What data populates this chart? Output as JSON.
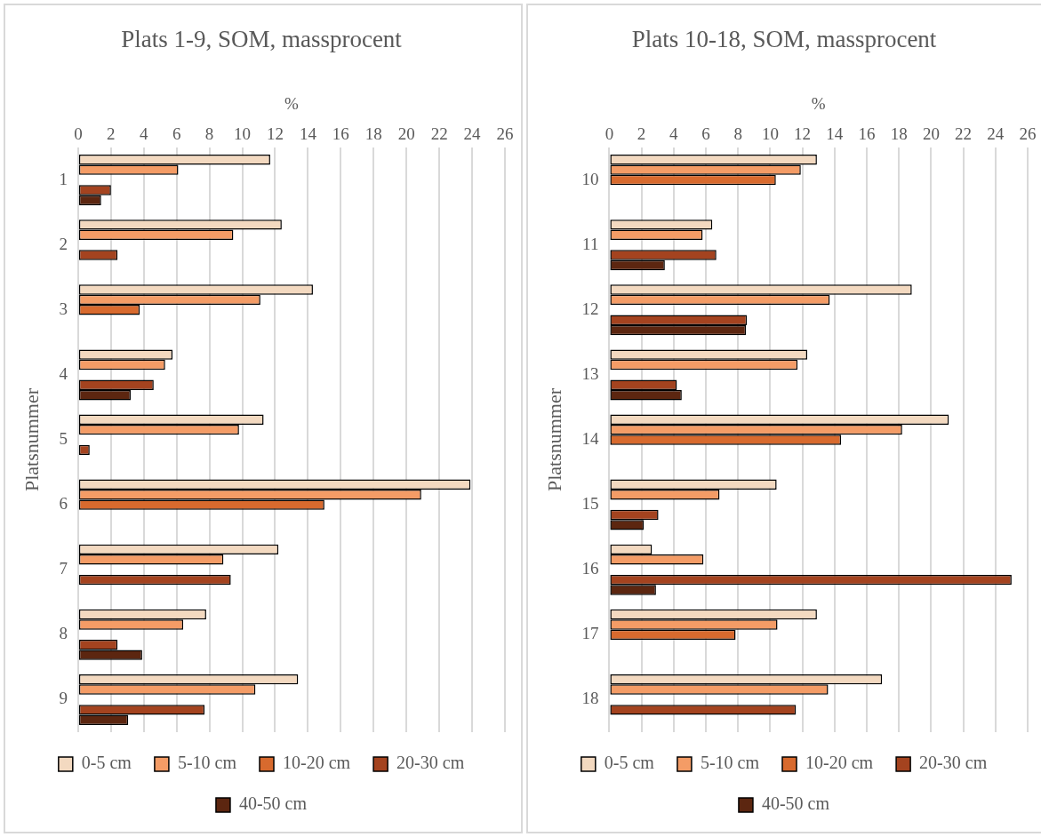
{
  "chart_data": [
    {
      "type": "bar",
      "orientation": "horizontal",
      "title": "Plats 1-9, SOM, massprocent",
      "xlabel": "%",
      "ylabel": "Platsnummer",
      "categories": [
        "1",
        "2",
        "3",
        "4",
        "5",
        "6",
        "7",
        "8",
        "9"
      ],
      "series": [
        {
          "name": "0-5 cm",
          "color": "#f3d9c0",
          "values": [
            11.7,
            12.4,
            14.3,
            5.75,
            11.3,
            23.9,
            12.2,
            7.8,
            13.4
          ]
        },
        {
          "name": "5-10 cm",
          "color": "#f49c66",
          "values": [
            6.1,
            9.45,
            11.1,
            5.3,
            9.8,
            20.9,
            8.85,
            6.4,
            10.8
          ]
        },
        {
          "name": "10-20 cm",
          "color": "#d86a2e",
          "values": [
            null,
            null,
            3.75,
            null,
            null,
            15.0,
            null,
            null,
            null
          ]
        },
        {
          "name": "20-30 cm",
          "color": "#a4431f",
          "values": [
            2.0,
            2.4,
            null,
            4.6,
            0.7,
            null,
            9.3,
            2.4,
            7.7
          ]
        },
        {
          "name": "40-50 cm",
          "color": "#5c2610",
          "values": [
            1.4,
            null,
            null,
            3.2,
            null,
            null,
            null,
            3.9,
            3.05
          ]
        }
      ],
      "xlim": [
        0,
        26
      ],
      "xticks": [
        0,
        2,
        4,
        6,
        8,
        10,
        12,
        14,
        16,
        18,
        20,
        22,
        24,
        26
      ],
      "grid": "x",
      "legend": "bottom"
    },
    {
      "type": "bar",
      "orientation": "horizontal",
      "title": "Plats 10-18, SOM, massprocent",
      "xlabel": "%",
      "ylabel": "Platsnummer",
      "categories": [
        "10",
        "11",
        "12",
        "13",
        "14",
        "15",
        "16",
        "17",
        "18"
      ],
      "series": [
        {
          "name": "0-5 cm",
          "color": "#f3d9c0",
          "values": [
            12.9,
            6.4,
            18.8,
            12.3,
            21.1,
            10.4,
            2.65,
            12.9,
            16.95
          ]
        },
        {
          "name": "5-10 cm",
          "color": "#f49c66",
          "values": [
            11.9,
            5.8,
            13.7,
            11.7,
            18.2,
            6.85,
            5.85,
            10.45,
            13.6
          ]
        },
        {
          "name": "10-20 cm",
          "color": "#d86a2e",
          "values": [
            10.35,
            null,
            null,
            null,
            14.4,
            null,
            null,
            7.85,
            null
          ]
        },
        {
          "name": "20-30 cm",
          "color": "#a4431f",
          "values": [
            null,
            6.65,
            8.55,
            4.2,
            null,
            3.05,
            25.0,
            null,
            11.6
          ]
        },
        {
          "name": "40-50 cm",
          "color": "#5c2610",
          "values": [
            null,
            3.45,
            8.5,
            4.5,
            null,
            2.15,
            2.9,
            null,
            null
          ]
        }
      ],
      "xlim": [
        0,
        26
      ],
      "xticks": [
        0,
        2,
        4,
        6,
        8,
        10,
        12,
        14,
        16,
        18,
        20,
        22,
        24,
        26
      ],
      "grid": "x",
      "legend": "bottom"
    }
  ]
}
